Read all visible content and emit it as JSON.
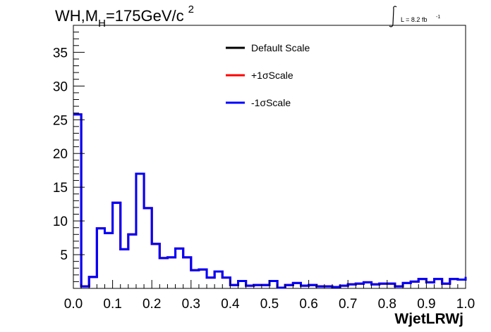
{
  "chart_data": {
    "type": "line",
    "title": "WH,M",
    "title_sub": "H",
    "title_rest": "=175GeV/c",
    "title_sup": "2",
    "lumi_label": "L = 8.2 fb",
    "lumi_sup": "-1",
    "xlabel": "WjetLRWj",
    "ylabel": "",
    "xlim": [
      0,
      1.0
    ],
    "ylim": [
      0,
      39
    ],
    "x_ticks": [
      "0.0",
      "0.1",
      "0.2",
      "0.3",
      "0.4",
      "0.5",
      "0.6",
      "0.7",
      "0.8",
      "0.9",
      "1.0"
    ],
    "y_ticks": [
      "5",
      "10",
      "15",
      "20",
      "25",
      "30",
      "35"
    ],
    "grid": false,
    "legend_placement": "top-center",
    "bin_width": 0.02,
    "series": [
      {
        "name": "Default Scale",
        "color": "#000000",
        "values": [
          25.8,
          0.3,
          1.7,
          8.9,
          8.2,
          12.7,
          5.8,
          8.0,
          17.0,
          11.9,
          6.6,
          4.5,
          4.6,
          5.9,
          4.6,
          2.7,
          2.8,
          1.6,
          2.5,
          1.6,
          0.5,
          1.1,
          0.4,
          0.5,
          0.5,
          1.1,
          0.1,
          0.5,
          0.8,
          0.4,
          0.5,
          0.3,
          0.3,
          0.2,
          0.4,
          0.6,
          0.7,
          0.9,
          0.6,
          0.7,
          0.7,
          0.3,
          0.8,
          1.0,
          1.4,
          0.9,
          1.4,
          0.7,
          1.4,
          1.3,
          1.7
        ]
      },
      {
        "name": "+1σScale",
        "color": "#ff0000",
        "values": [
          25.8,
          0.3,
          1.7,
          8.9,
          8.2,
          12.7,
          5.8,
          8.0,
          17.0,
          11.9,
          6.6,
          4.5,
          4.6,
          5.9,
          4.6,
          2.7,
          2.8,
          1.6,
          2.5,
          1.6,
          0.5,
          1.1,
          0.4,
          0.5,
          0.5,
          1.1,
          0.1,
          0.5,
          0.8,
          0.4,
          0.5,
          0.3,
          0.3,
          0.2,
          0.4,
          0.6,
          0.7,
          0.9,
          0.6,
          0.7,
          0.7,
          0.3,
          0.8,
          1.0,
          1.4,
          0.9,
          1.4,
          0.7,
          1.4,
          1.3,
          1.7
        ]
      },
      {
        "name": "-1σScale",
        "color": "#0000ff",
        "values": [
          25.8,
          0.3,
          1.7,
          8.9,
          8.2,
          12.7,
          5.8,
          8.0,
          17.0,
          11.9,
          6.6,
          4.5,
          4.6,
          5.9,
          4.6,
          2.7,
          2.8,
          1.6,
          2.5,
          1.6,
          0.5,
          1.1,
          0.4,
          0.5,
          0.5,
          1.1,
          0.1,
          0.5,
          0.8,
          0.4,
          0.5,
          0.3,
          0.3,
          0.2,
          0.4,
          0.6,
          0.7,
          0.9,
          0.6,
          0.7,
          0.7,
          0.3,
          0.8,
          1.0,
          1.4,
          0.9,
          1.4,
          0.7,
          1.4,
          1.3,
          1.7
        ]
      }
    ]
  }
}
